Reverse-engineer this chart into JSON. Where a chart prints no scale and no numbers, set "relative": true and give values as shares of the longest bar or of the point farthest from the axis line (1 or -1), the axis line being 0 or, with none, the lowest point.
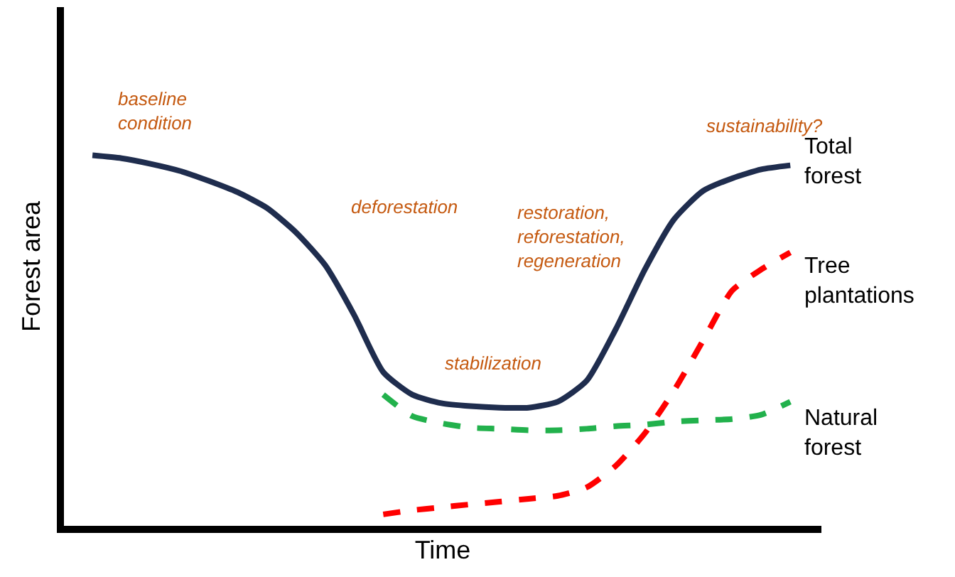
{
  "chart_data": {
    "type": "line",
    "relative": true,
    "xlabel": "Time",
    "ylabel": "Forest area",
    "tick_labels": false,
    "legend": false,
    "marker": "none",
    "categories": [
      null,
      null,
      null,
      null,
      null,
      null,
      null,
      null,
      null,
      null,
      null,
      null,
      null,
      null,
      null,
      null,
      null,
      null,
      null,
      null,
      null,
      null,
      null,
      null,
      null
    ],
    "series": [
      {
        "name": "Total forest",
        "color": "#1f2d4e",
        "line_style": "solid",
        "values": [
          1.0,
          0.992,
          0.977,
          0.958,
          0.931,
          0.9,
          0.858,
          0.792,
          0.704,
          0.569,
          0.415,
          0.354,
          0.331,
          0.323,
          0.319,
          0.319,
          0.335,
          0.392,
          0.531,
          0.692,
          0.827,
          0.904,
          0.938,
          0.962,
          0.973
        ]
      },
      {
        "name": "Tree plantations",
        "color": "#ff0000",
        "line_style": "dashed",
        "values": [
          null,
          null,
          null,
          null,
          null,
          null,
          null,
          null,
          null,
          null,
          0.031,
          0.042,
          0.05,
          0.058,
          0.065,
          0.073,
          0.081,
          0.104,
          0.162,
          0.25,
          0.365,
          0.5,
          0.635,
          0.692,
          0.738
        ]
      },
      {
        "name": "Natural forest",
        "color": "#22b14c",
        "line_style": "dashed",
        "values": [
          null,
          null,
          null,
          null,
          null,
          null,
          null,
          null,
          null,
          null,
          0.354,
          0.296,
          0.277,
          0.265,
          0.262,
          0.258,
          0.258,
          0.262,
          0.269,
          0.273,
          0.281,
          0.285,
          0.288,
          0.3,
          0.335
        ]
      }
    ],
    "annotations": [
      "baseline condition",
      "deforestation",
      "stabilization",
      "restoration, reforestation, regeneration",
      "sustainability?"
    ]
  }
}
